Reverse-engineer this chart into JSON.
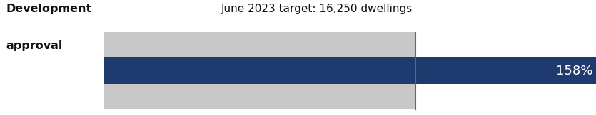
{
  "title_line1": "Development",
  "title_line2": "approval",
  "target_label": "June 2023 target: 16,250 dwellings",
  "percentage": 158,
  "target_pct": 100,
  "bar_color": "#1e3a6e",
  "gray_color": "#c8c8c8",
  "bg_color": "#ffffff",
  "pct_label": "158%",
  "pct_text_color": "#ffffff",
  "title_fontsize": 11.5,
  "target_label_fontsize": 11,
  "pct_fontsize": 13,
  "target_line_color": "#666666",
  "title_color": "#111111"
}
